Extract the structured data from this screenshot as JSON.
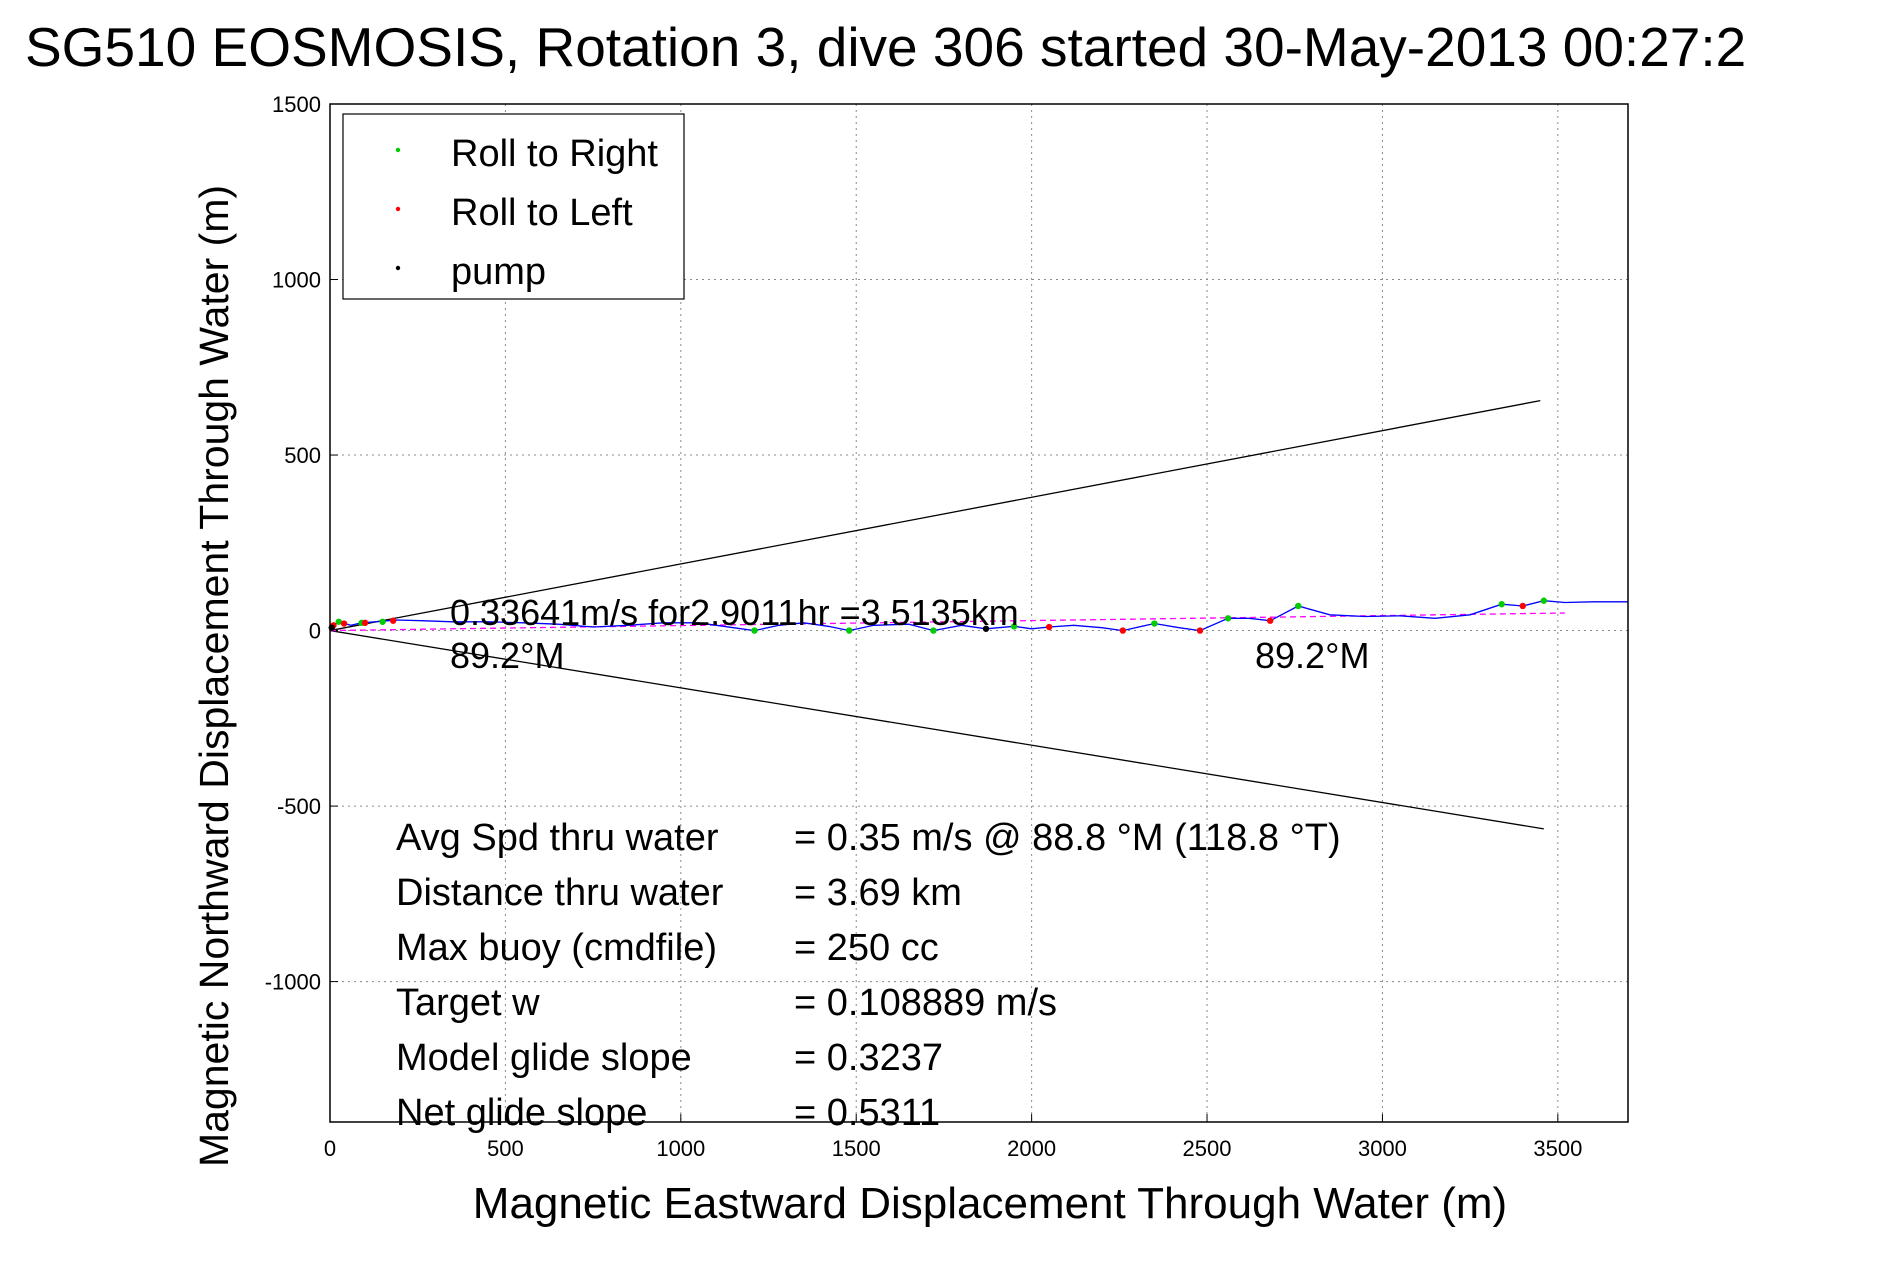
{
  "chart_data": {
    "type": "line",
    "title": "SG510 EOSMOSIS, Rotation 3, dive 306 started 30-May-2013 00:27:2",
    "xlabel": "Magnetic Eastward Displacement Through Water (m)",
    "ylabel": "Magnetic Northward Displacement Through Water (m)",
    "xlim": [
      0,
      3700
    ],
    "ylim": [
      -1400,
      1500
    ],
    "xticks": [
      0,
      500,
      1000,
      1500,
      2000,
      2500,
      3000,
      3500
    ],
    "yticks": [
      -1000,
      -500,
      0,
      500,
      1000,
      1500
    ],
    "grid": true,
    "legend": {
      "position": "top-left",
      "entries": [
        {
          "label": "Roll to Right",
          "color": "#00cc00"
        },
        {
          "label": "Roll to Left",
          "color": "#ff0000"
        },
        {
          "label": "pump",
          "color": "#000000"
        }
      ]
    },
    "track": {
      "color": "#0000ff",
      "x": [
        0,
        10,
        25,
        40,
        60,
        90,
        130,
        190,
        260,
        350,
        450,
        550,
        650,
        750,
        850,
        950,
        1050,
        1150,
        1210,
        1280,
        1350,
        1420,
        1480,
        1550,
        1650,
        1720,
        1800,
        1870,
        1950,
        2000,
        2050,
        2120,
        2200,
        2260,
        2350,
        2420,
        2480,
        2560,
        2620,
        2680,
        2760,
        2850,
        2950,
        3050,
        3150,
        3250,
        3340,
        3400,
        3460,
        3520,
        3600,
        3700
      ],
      "y": [
        0,
        15,
        25,
        20,
        15,
        22,
        25,
        30,
        28,
        25,
        25,
        22,
        18,
        10,
        15,
        22,
        22,
        8,
        0,
        15,
        22,
        12,
        0,
        15,
        18,
        0,
        15,
        5,
        12,
        5,
        10,
        15,
        8,
        0,
        20,
        8,
        0,
        35,
        35,
        28,
        70,
        45,
        40,
        42,
        35,
        45,
        75,
        70,
        85,
        80,
        82,
        82
      ]
    },
    "markers": {
      "roll_to_right": {
        "color": "#00cc00",
        "x": [
          25,
          90,
          150,
          1210,
          1480,
          1720,
          1950,
          2350,
          2560,
          2760,
          3340,
          3460
        ],
        "y": [
          25,
          22,
          25,
          0,
          0,
          0,
          12,
          20,
          35,
          70,
          75,
          85
        ]
      },
      "roll_to_left": {
        "color": "#ff0000",
        "x": [
          10,
          40,
          100,
          180,
          2050,
          2260,
          2480,
          2680,
          3400
        ],
        "y": [
          15,
          20,
          22,
          28,
          10,
          0,
          0,
          28,
          70
        ]
      },
      "pump": {
        "color": "#000000",
        "x": [
          5,
          1870
        ],
        "y": [
          8,
          5
        ]
      }
    },
    "heading_line": {
      "color": "#ff00ff",
      "style": "dashed",
      "x": [
        0,
        3520
      ],
      "y": [
        0,
        50
      ]
    },
    "cone_lines": {
      "color": "#000000",
      "upper": {
        "x": [
          0,
          3450
        ],
        "y": [
          0,
          655
        ]
      },
      "lower": {
        "x": [
          0,
          3460
        ],
        "y": [
          0,
          -565
        ]
      }
    },
    "annotations": {
      "speed": "0.33641m/s for2.9011hr =3.5135km",
      "heading_left": "89.2°M",
      "heading_right": "89.2°M"
    },
    "stats": [
      {
        "label": "Avg Spd thru water",
        "value": "=  0.35 m/s @  88.8 °M (118.8 °T)"
      },
      {
        "label": "Distance thru water",
        "value": "=  3.69 km"
      },
      {
        "label": "Max buoy (cmdfile)",
        "value": "= 250 cc"
      },
      {
        "label": "Target w",
        "value": "= 0.108889 m/s"
      },
      {
        "label": "Model glide slope",
        "value": "= 0.3237"
      },
      {
        "label": "Net glide slope",
        "value": "= 0.5311"
      }
    ]
  }
}
